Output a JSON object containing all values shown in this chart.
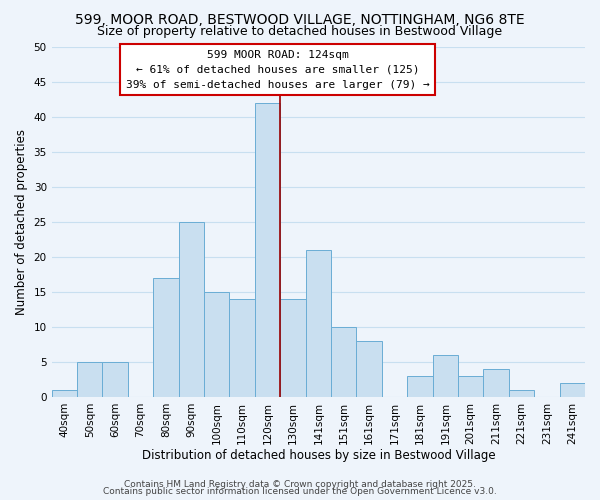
{
  "title": "599, MOOR ROAD, BESTWOOD VILLAGE, NOTTINGHAM, NG6 8TE",
  "subtitle": "Size of property relative to detached houses in Bestwood Village",
  "xlabel": "Distribution of detached houses by size in Bestwood Village",
  "ylabel": "Number of detached properties",
  "bar_labels": [
    "40sqm",
    "50sqm",
    "60sqm",
    "70sqm",
    "80sqm",
    "90sqm",
    "100sqm",
    "110sqm",
    "120sqm",
    "130sqm",
    "141sqm",
    "151sqm",
    "161sqm",
    "171sqm",
    "181sqm",
    "191sqm",
    "201sqm",
    "211sqm",
    "221sqm",
    "231sqm",
    "241sqm"
  ],
  "bar_values": [
    1,
    5,
    5,
    0,
    17,
    25,
    15,
    14,
    42,
    14,
    21,
    10,
    8,
    0,
    3,
    6,
    3,
    4,
    1,
    0,
    2
  ],
  "bar_color": "#c9dff0",
  "bar_edge_color": "#6aadd5",
  "grid_color": "#c8dff0",
  "background_color": "#eef4fb",
  "vline_x": 8.5,
  "vline_color": "#990000",
  "annotation_title": "599 MOOR ROAD: 124sqm",
  "annotation_line1": "← 61% of detached houses are smaller (125)",
  "annotation_line2": "39% of semi-detached houses are larger (79) →",
  "annotation_box_color": "#ffffff",
  "annotation_box_edge_color": "#cc0000",
  "ylim": [
    0,
    50
  ],
  "yticks": [
    0,
    5,
    10,
    15,
    20,
    25,
    30,
    35,
    40,
    45,
    50
  ],
  "footer1": "Contains HM Land Registry data © Crown copyright and database right 2025.",
  "footer2": "Contains public sector information licensed under the Open Government Licence v3.0.",
  "title_fontsize": 10,
  "subtitle_fontsize": 9,
  "axis_label_fontsize": 8.5,
  "tick_fontsize": 7.5,
  "annotation_fontsize": 8,
  "footer_fontsize": 6.5
}
